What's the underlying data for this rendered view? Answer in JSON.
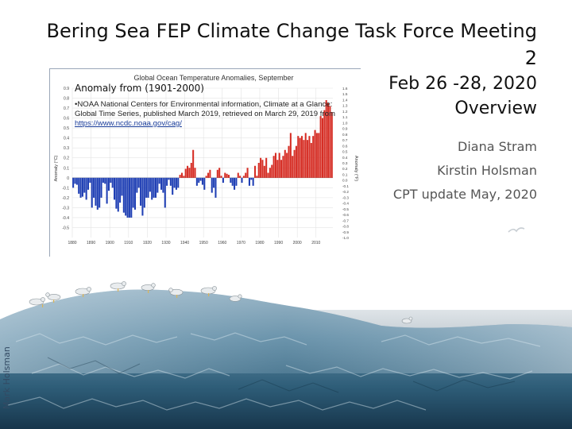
{
  "slide": {
    "title_line1": "Bering Sea FEP Climate Change Task Force Meeting",
    "title_line2": "2",
    "date": "Feb 26 -28, 2020",
    "overview": "Overview",
    "authors": [
      "Diana Stram",
      "Kirstin Holsman",
      "CPT update May, 2020"
    ],
    "photo_credit": "Mark Holsman"
  },
  "overlay": {
    "heading": "Anomaly from (1901-2000)",
    "note_text": "•NOAA National Centers for Environmental information, Climate at a Glance: Global Time Series, published March 2019, retrieved on March 29, 2019 from ",
    "note_link": "https://www.ncdc.noaa.gov/cag/"
  },
  "chart_data": {
    "type": "bar",
    "title": "Global Ocean Temperature Anomalies, September",
    "ylabel": "Anomaly (°C)",
    "y2label": "Anomaly (°F)",
    "ylim": [
      -0.6,
      0.9
    ],
    "y2lim": [
      -1.0,
      1.6
    ],
    "yticks": [
      "0.9",
      "0.8",
      "0.7",
      "0.6",
      "0.5",
      "0.4",
      "0.3",
      "0.2",
      "0.1",
      "0",
      "-0.1",
      "-0.2",
      "-0.3",
      "-0.4",
      "-0.5"
    ],
    "y2ticks": [
      "1.6",
      "1.5",
      "1.4",
      "1.3",
      "1.2",
      "1.1",
      "1.0",
      "0.9",
      "0.8",
      "0.7",
      "0.6",
      "0.5",
      "0.4",
      "0.3",
      "0.2",
      "0.1",
      "0.0",
      "-0.1",
      "-0.2",
      "-0.3",
      "-0.4",
      "-0.5",
      "-0.6",
      "-0.7",
      "-0.8",
      "-0.9",
      "-1.0"
    ],
    "xticks": [
      "1880",
      "1890",
      "1900",
      "1910",
      "1920",
      "1930",
      "1940",
      "1950",
      "1960",
      "1970",
      "1980",
      "1990",
      "2000",
      "2010"
    ],
    "x_start": 1880,
    "x_end": 2018,
    "grid": true,
    "positive_color": "#d62e25",
    "negative_color": "#1f3fb4",
    "series": [
      {
        "values": [
          -0.1,
          -0.06,
          -0.07,
          -0.16,
          -0.2,
          -0.19,
          -0.15,
          -0.22,
          -0.12,
          -0.05,
          -0.3,
          -0.2,
          -0.28,
          -0.32,
          -0.3,
          -0.2,
          -0.05,
          -0.06,
          -0.26,
          -0.13,
          -0.05,
          -0.1,
          -0.22,
          -0.31,
          -0.34,
          -0.25,
          -0.18,
          -0.35,
          -0.38,
          -0.4,
          -0.4,
          -0.4,
          -0.3,
          -0.32,
          -0.15,
          -0.1,
          -0.28,
          -0.38,
          -0.3,
          -0.2,
          -0.2,
          -0.14,
          -0.22,
          -0.2,
          -0.2,
          -0.15,
          -0.06,
          -0.12,
          -0.15,
          -0.3,
          -0.08,
          -0.02,
          -0.08,
          -0.17,
          -0.1,
          -0.12,
          -0.1,
          0.03,
          0.05,
          0.02,
          0.09,
          0.12,
          0.1,
          0.15,
          0.28,
          0.1,
          -0.08,
          -0.05,
          -0.03,
          -0.07,
          -0.12,
          0.02,
          0.05,
          0.08,
          -0.15,
          -0.1,
          -0.2,
          0.08,
          0.1,
          0.02,
          -0.05,
          0.05,
          0.04,
          0.03,
          -0.05,
          -0.08,
          -0.12,
          -0.08,
          0.05,
          0.02,
          -0.05,
          0.02,
          0.05,
          0.1,
          -0.08,
          -0.02,
          -0.08,
          0.12,
          0.02,
          0.15,
          0.2,
          0.18,
          0.12,
          0.2,
          0.05,
          0.1,
          0.13,
          0.22,
          0.25,
          0.18,
          0.25,
          0.18,
          0.22,
          0.28,
          0.25,
          0.32,
          0.45,
          0.22,
          0.28,
          0.32,
          0.42,
          0.4,
          0.42,
          0.38,
          0.45,
          0.38,
          0.42,
          0.35,
          0.42,
          0.48,
          0.45,
          0.45,
          0.62,
          0.6,
          0.68,
          0.78,
          0.75,
          0.72,
          0.66
        ]
      }
    ]
  }
}
